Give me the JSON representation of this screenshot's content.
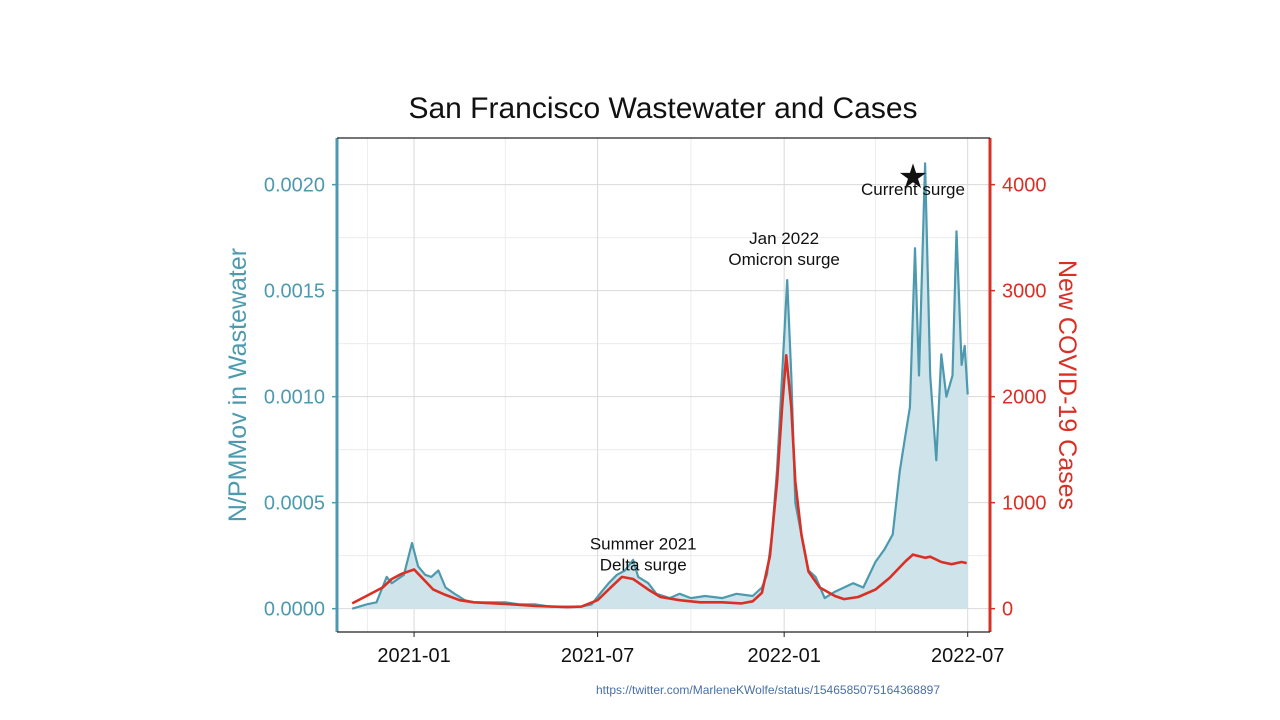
{
  "chart_data": {
    "type": "area",
    "title": "San Francisco Wastewater and Cases",
    "ylabel_left": "N/PMMov in Wastewater",
    "ylabel_right": "New COVID-19 Cases",
    "xlabel": "",
    "x_range": [
      "2020-10-17",
      "2022-07-23"
    ],
    "ylim_left": [
      -0.00011,
      0.00222
    ],
    "ylim_right": [
      -220,
      4440
    ],
    "x_ticks": [
      {
        "date": "2021-01-01",
        "label": "2021-01"
      },
      {
        "date": "2021-07-01",
        "label": "2021-07"
      },
      {
        "date": "2022-01-01",
        "label": "2022-01"
      },
      {
        "date": "2022-07-01",
        "label": "2022-07"
      }
    ],
    "left_ticks": [
      {
        "value": 0.0,
        "label": "0.0000"
      },
      {
        "value": 0.0005,
        "label": "0.0005"
      },
      {
        "value": 0.001,
        "label": "0.0010"
      },
      {
        "value": 0.0015,
        "label": "0.0015"
      },
      {
        "value": 0.002,
        "label": "0.0020"
      }
    ],
    "right_ticks": [
      {
        "value": 0,
        "label": "0"
      },
      {
        "value": 1000,
        "label": "1000"
      },
      {
        "value": 2000,
        "label": "2000"
      },
      {
        "value": 3000,
        "label": "3000"
      },
      {
        "value": 4000,
        "label": "4000"
      }
    ],
    "colors": {
      "wastewater": "#4d9aaf",
      "wastewater_fill": "#cfe3ea",
      "cases": "#d93025",
      "grid": "#d9d9d9",
      "frame": "#222222"
    },
    "series": [
      {
        "name": "N/PMMov in Wastewater",
        "axis": "left",
        "points": [
          [
            "2020-11-01",
            0.0
          ],
          [
            "2020-11-15",
            2e-05
          ],
          [
            "2020-11-25",
            3e-05
          ],
          [
            "2020-12-05",
            0.00015
          ],
          [
            "2020-12-10",
            0.00012
          ],
          [
            "2020-12-22",
            0.00016
          ],
          [
            "2020-12-30",
            0.00031
          ],
          [
            "2021-01-05",
            0.0002
          ],
          [
            "2021-01-12",
            0.00016
          ],
          [
            "2021-01-18",
            0.00015
          ],
          [
            "2021-01-25",
            0.00018
          ],
          [
            "2021-02-01",
            0.0001
          ],
          [
            "2021-02-10",
            7e-05
          ],
          [
            "2021-02-20",
            4e-05
          ],
          [
            "2021-03-01",
            3e-05
          ],
          [
            "2021-03-15",
            3e-05
          ],
          [
            "2021-04-01",
            3e-05
          ],
          [
            "2021-04-15",
            2e-05
          ],
          [
            "2021-05-01",
            2e-05
          ],
          [
            "2021-05-15",
            1e-05
          ],
          [
            "2021-06-01",
            1e-05
          ],
          [
            "2021-06-15",
            1e-05
          ],
          [
            "2021-06-25",
            2e-05
          ],
          [
            "2021-07-05",
            8e-05
          ],
          [
            "2021-07-12",
            0.00012
          ],
          [
            "2021-07-20",
            0.00016
          ],
          [
            "2021-07-28",
            0.00018
          ],
          [
            "2021-08-05",
            0.00023
          ],
          [
            "2021-08-10",
            0.00015
          ],
          [
            "2021-08-20",
            0.00012
          ],
          [
            "2021-08-28",
            7e-05
          ],
          [
            "2021-09-10",
            5e-05
          ],
          [
            "2021-09-20",
            7e-05
          ],
          [
            "2021-10-01",
            5e-05
          ],
          [
            "2021-10-15",
            6e-05
          ],
          [
            "2021-11-01",
            5e-05
          ],
          [
            "2021-11-15",
            7e-05
          ],
          [
            "2021-12-01",
            6e-05
          ],
          [
            "2021-12-10",
            0.0001
          ],
          [
            "2021-12-15",
            0.00016
          ],
          [
            "2021-12-20",
            0.00035
          ],
          [
            "2021-12-25",
            0.00066
          ],
          [
            "2021-12-30",
            0.0011
          ],
          [
            "2022-01-04",
            0.00155
          ],
          [
            "2022-01-08",
            0.0011
          ],
          [
            "2022-01-12",
            0.0005
          ],
          [
            "2022-01-18",
            0.00035
          ],
          [
            "2022-01-25",
            0.00018
          ],
          [
            "2022-02-01",
            0.00015
          ],
          [
            "2022-02-10",
            5e-05
          ],
          [
            "2022-02-20",
            8e-05
          ],
          [
            "2022-03-01",
            0.0001
          ],
          [
            "2022-03-10",
            0.00012
          ],
          [
            "2022-03-20",
            0.0001
          ],
          [
            "2022-04-01",
            0.00022
          ],
          [
            "2022-04-10",
            0.00028
          ],
          [
            "2022-04-18",
            0.00035
          ],
          [
            "2022-04-25",
            0.00065
          ],
          [
            "2022-04-30",
            0.0008
          ],
          [
            "2022-05-05",
            0.00095
          ],
          [
            "2022-05-10",
            0.0017
          ],
          [
            "2022-05-14",
            0.0011
          ],
          [
            "2022-05-20",
            0.0021
          ],
          [
            "2022-05-25",
            0.0011
          ],
          [
            "2022-05-31",
            0.0007
          ],
          [
            "2022-06-05",
            0.0012
          ],
          [
            "2022-06-10",
            0.001
          ],
          [
            "2022-06-16",
            0.0011
          ],
          [
            "2022-06-20",
            0.00178
          ],
          [
            "2022-06-25",
            0.00115
          ],
          [
            "2022-06-28",
            0.00124
          ],
          [
            "2022-07-01",
            0.00101
          ]
        ]
      },
      {
        "name": "New COVID-19 Cases",
        "axis": "right",
        "points": [
          [
            "2020-11-01",
            50
          ],
          [
            "2020-11-15",
            120
          ],
          [
            "2020-12-01",
            200
          ],
          [
            "2020-12-10",
            280
          ],
          [
            "2020-12-20",
            330
          ],
          [
            "2021-01-01",
            370
          ],
          [
            "2021-01-10",
            280
          ],
          [
            "2021-01-20",
            180
          ],
          [
            "2021-02-01",
            130
          ],
          [
            "2021-02-15",
            80
          ],
          [
            "2021-03-01",
            60
          ],
          [
            "2021-04-01",
            45
          ],
          [
            "2021-05-01",
            25
          ],
          [
            "2021-06-01",
            15
          ],
          [
            "2021-06-15",
            20
          ],
          [
            "2021-07-01",
            80
          ],
          [
            "2021-07-15",
            210
          ],
          [
            "2021-07-25",
            300
          ],
          [
            "2021-08-05",
            280
          ],
          [
            "2021-08-20",
            180
          ],
          [
            "2021-09-01",
            110
          ],
          [
            "2021-09-20",
            80
          ],
          [
            "2021-10-10",
            60
          ],
          [
            "2021-11-01",
            60
          ],
          [
            "2021-11-20",
            50
          ],
          [
            "2021-12-01",
            70
          ],
          [
            "2021-12-10",
            150
          ],
          [
            "2021-12-18",
            500
          ],
          [
            "2021-12-25",
            1200
          ],
          [
            "2021-12-30",
            1900
          ],
          [
            "2022-01-03",
            2390
          ],
          [
            "2022-01-08",
            1900
          ],
          [
            "2022-01-12",
            1200
          ],
          [
            "2022-01-18",
            700
          ],
          [
            "2022-01-25",
            350
          ],
          [
            "2022-02-05",
            200
          ],
          [
            "2022-02-20",
            120
          ],
          [
            "2022-03-01",
            90
          ],
          [
            "2022-03-15",
            110
          ],
          [
            "2022-04-01",
            180
          ],
          [
            "2022-04-15",
            290
          ],
          [
            "2022-05-01",
            450
          ],
          [
            "2022-05-08",
            510
          ],
          [
            "2022-05-20",
            480
          ],
          [
            "2022-05-25",
            490
          ],
          [
            "2022-06-05",
            440
          ],
          [
            "2022-06-15",
            420
          ],
          [
            "2022-06-25",
            440
          ],
          [
            "2022-06-30",
            430
          ]
        ]
      }
    ],
    "annotations": [
      {
        "text": [
          "Summer 2021",
          "Delta surge"
        ],
        "date": "2021-08-15",
        "y": 0.00028
      },
      {
        "text": [
          "Jan 2022",
          "Omicron surge"
        ],
        "date": "2022-01-01",
        "y": 0.00172
      },
      {
        "text": [
          "Current surge"
        ],
        "date": "2022-05-08",
        "y": 0.00195
      }
    ],
    "marker": {
      "symbol": "★",
      "date": "2022-05-08",
      "y": 0.00204
    }
  },
  "source_url": "https://twitter.com/MarleneKWolfe/status/1546585075164368897"
}
